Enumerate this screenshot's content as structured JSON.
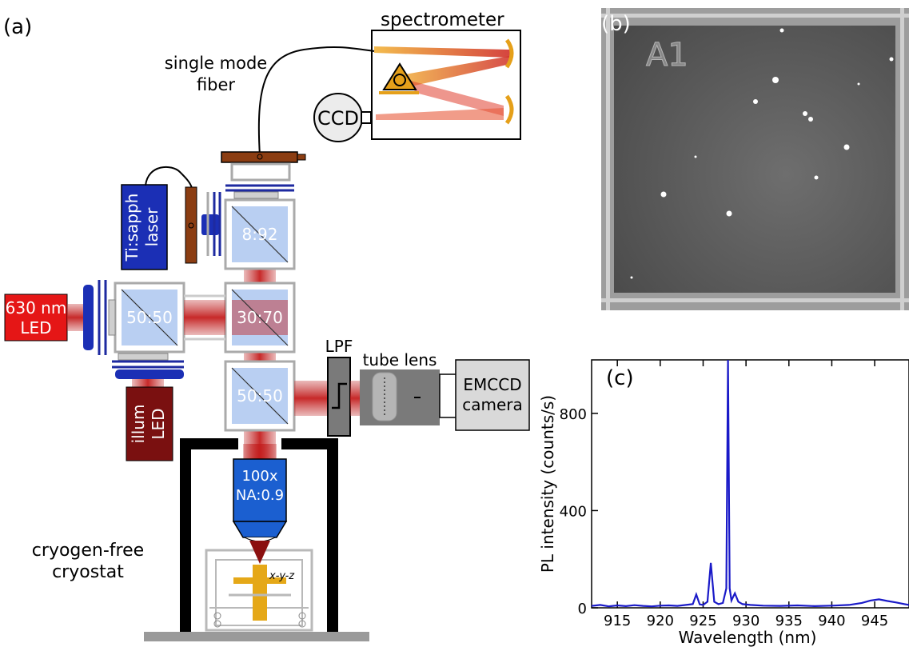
{
  "panel_a": {
    "label": "(a)",
    "spectrometer": "spectrometer",
    "fiber": [
      "single mode",
      "fiber"
    ],
    "ccd": "CCD",
    "laser": [
      "Ti:sapph",
      "laser"
    ],
    "led630": [
      "630 nm",
      "LED"
    ],
    "illum": [
      "illum",
      "LED"
    ],
    "bs_top": "8:92",
    "bs_left": "50:50",
    "bs_mid": "30:70",
    "bs_bottom": "50:50",
    "lpf": "LPF",
    "tube_lens": "tube lens",
    "camera": [
      "EMCCD",
      "camera"
    ],
    "objective": [
      "100x",
      "NA:0.9"
    ],
    "cryostat": [
      "cryogen-free",
      "cryostat"
    ],
    "stage": "x-y-z"
  },
  "panel_b": {
    "label": "(b)",
    "marker": "A1"
  },
  "chart_data": {
    "type": "line",
    "label": "(c)",
    "xlabel": "Wavelength (nm)",
    "ylabel": "PL intensity (counts/s)",
    "xlim": [
      912,
      949
    ],
    "ylim": [
      0,
      1020
    ],
    "xticks": [
      915,
      920,
      925,
      930,
      935,
      940,
      945
    ],
    "yticks": [
      0,
      400,
      800
    ],
    "color": "#1a1ac8",
    "series": [
      {
        "x": [
          912,
          913,
          914,
          915,
          916,
          917,
          918,
          919,
          920,
          921,
          922,
          923,
          923.8,
          924.2,
          924.6,
          925,
          925.5,
          925.9,
          926.3,
          926.8,
          927.3,
          927.7,
          927.9,
          928.1,
          928.3,
          928.7,
          929.1,
          929.6,
          930.5,
          932,
          934,
          936,
          938,
          940,
          942,
          943.5,
          944.5,
          945.5,
          946.5,
          947.5,
          948.5,
          949
        ],
        "y": [
          8,
          12,
          6,
          10,
          7,
          11,
          8,
          6,
          9,
          10,
          8,
          12,
          15,
          55,
          14,
          12,
          25,
          185,
          25,
          15,
          20,
          80,
          1020,
          80,
          30,
          60,
          25,
          15,
          12,
          9,
          8,
          10,
          7,
          9,
          12,
          20,
          30,
          35,
          28,
          22,
          15,
          12
        ]
      }
    ]
  }
}
